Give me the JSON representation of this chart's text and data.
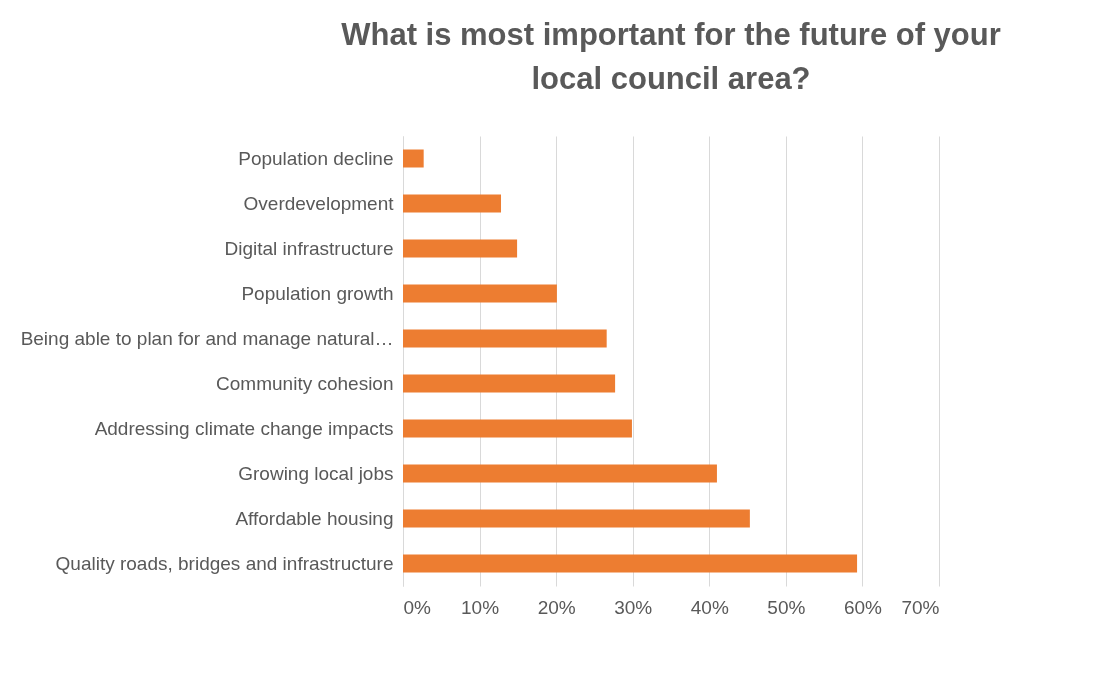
{
  "chart_data": {
    "type": "bar",
    "orientation": "horizontal",
    "title": "What is most important for the future of your local council area?",
    "categories": [
      "Population decline",
      "Overdevelopment",
      "Digital infrastructure",
      "Population growth",
      "Being able to plan for and manage natural…",
      "Community cohesion",
      "Addressing climate change impacts",
      "Growing local jobs",
      "Affordable housing",
      "Quality roads, bridges and infrastructure"
    ],
    "values": [
      2.7,
      12.8,
      14.9,
      20.1,
      26.6,
      27.7,
      29.9,
      41,
      45.3,
      59.3
    ],
    "color": "#ed7d31",
    "xlim": [
      0,
      70
    ],
    "xticks": [
      {
        "value": 0,
        "label": "0%"
      },
      {
        "value": 10,
        "label": "10%"
      },
      {
        "value": 20,
        "label": "20%"
      },
      {
        "value": 30,
        "label": "30%"
      },
      {
        "value": 40,
        "label": "40%"
      },
      {
        "value": 50,
        "label": "50%"
      },
      {
        "value": 60,
        "label": "60%"
      },
      {
        "value": 70,
        "label": "70%"
      }
    ],
    "grid": "x"
  }
}
